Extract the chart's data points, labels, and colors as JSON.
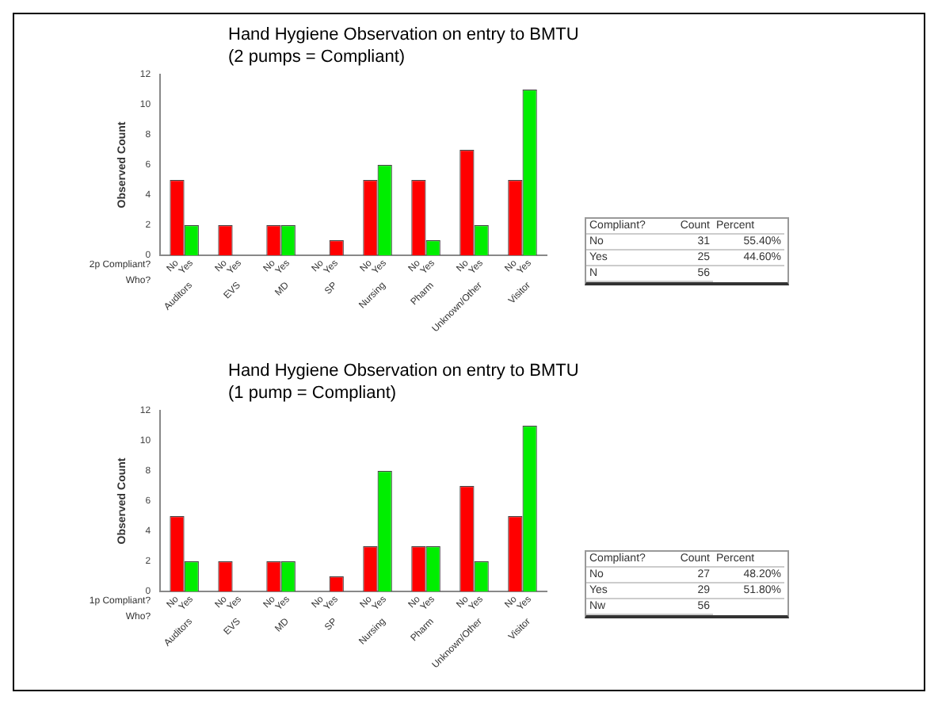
{
  "chart_data": [
    {
      "type": "bar",
      "title": "Hand Hygiene Observation on entry to BMTU",
      "subtitle": "(2  pumps =  Compliant)",
      "ylabel": "Observed Count",
      "xlabel": "Who?",
      "annotations": [
        "2p Compliant?"
      ],
      "categories": [
        "Auditors",
        "EVS",
        "MD",
        "SP",
        "Nursing",
        "Pharm",
        "Unknown/Other",
        "Visitor"
      ],
      "series": [
        {
          "name": "No",
          "color": "#ff0000",
          "values": [
            5,
            2,
            2,
            0,
            5,
            5,
            7,
            5
          ]
        },
        {
          "name": "Yes",
          "colors": [
            "#00ee00",
            "#00ee00",
            "#00ee00",
            "#ff0000",
            "#00ee00",
            "#00ee00",
            "#00ee00",
            "#00ee00"
          ],
          "values": [
            2,
            0,
            2,
            1,
            6,
            1,
            2,
            11
          ]
        }
      ],
      "ylim": [
        0,
        12
      ],
      "yticks": [
        0,
        2,
        4,
        6,
        8,
        10,
        12
      ],
      "grid": false,
      "legend": false
    },
    {
      "type": "other",
      "annotations": [
        "Compliant?",
        "Count",
        "Percent",
        "No",
        "31",
        "55.40%",
        "Yes",
        "25",
        "44.60%",
        "N",
        "56"
      ]
    },
    {
      "type": "bar",
      "title": "Hand Hygiene Observation on entry to BMTU",
      "subtitle": "(1  pump =  Compliant)",
      "ylabel": "Observed Count",
      "xlabel": "Who?",
      "annotations": [
        "1p Compliant?"
      ],
      "categories": [
        "Auditors",
        "EVS",
        "MD",
        "SP",
        "Nursing",
        "Pharm",
        "Unknown/Other",
        "Visitor"
      ],
      "series": [
        {
          "name": "No",
          "color": "#ff0000",
          "values": [
            5,
            2,
            2,
            0,
            3,
            3,
            7,
            5
          ]
        },
        {
          "name": "Yes",
          "colors": [
            "#00ee00",
            "#00ee00",
            "#00ee00",
            "#ff0000",
            "#00ee00",
            "#00ee00",
            "#00ee00",
            "#00ee00"
          ],
          "values": [
            2,
            0,
            2,
            1,
            8,
            3,
            2,
            11
          ]
        }
      ],
      "ylim": [
        0,
        12
      ],
      "yticks": [
        0,
        2,
        4,
        6,
        8,
        10,
        12
      ],
      "grid": false,
      "legend": false
    },
    {
      "type": "other",
      "annotations": [
        "Compliant?",
        "Count",
        "Percent",
        "No",
        "27",
        "48.20%",
        "Yes",
        "29",
        "51.80%",
        "Nw",
        "56"
      ]
    }
  ]
}
